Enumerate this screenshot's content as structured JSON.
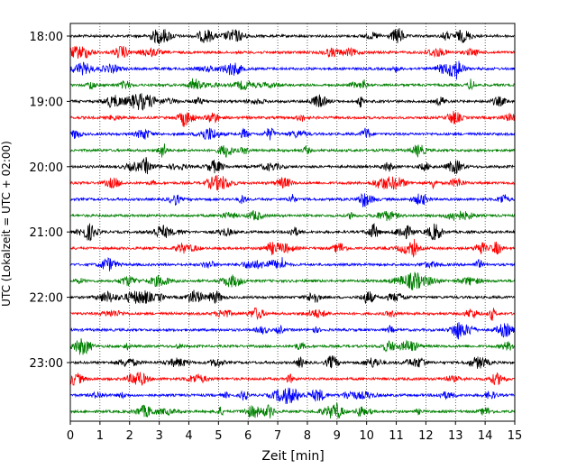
{
  "chart_data": {
    "type": "line",
    "title": "",
    "xlabel": "Zeit  [min]",
    "ylabel": "UTC (Lokalzeit = UTC + 02:00)",
    "xlim": [
      0,
      15
    ],
    "x_ticks": [
      0,
      1,
      2,
      3,
      4,
      5,
      6,
      7,
      8,
      9,
      10,
      11,
      12,
      13,
      14,
      15
    ],
    "y_ticks": [
      {
        "label": "18:00",
        "trace": 0
      },
      {
        "label": "19:00",
        "trace": 4
      },
      {
        "label": "20:00",
        "trace": 8
      },
      {
        "label": "21:00",
        "trace": 12
      },
      {
        "label": "22:00",
        "trace": 16
      },
      {
        "label": "23:00",
        "trace": 20
      }
    ],
    "grid": "vertical dotted",
    "colors": [
      "#000000",
      "#ff0000",
      "#0000ff",
      "#008000"
    ],
    "series": [
      {
        "start": "18:00",
        "color": "#000000"
      },
      {
        "start": "18:15",
        "color": "#ff0000"
      },
      {
        "start": "18:30",
        "color": "#0000ff"
      },
      {
        "start": "18:45",
        "color": "#008000"
      },
      {
        "start": "19:00",
        "color": "#000000"
      },
      {
        "start": "19:15",
        "color": "#ff0000"
      },
      {
        "start": "19:30",
        "color": "#0000ff"
      },
      {
        "start": "19:45",
        "color": "#008000"
      },
      {
        "start": "20:00",
        "color": "#000000"
      },
      {
        "start": "20:15",
        "color": "#ff0000"
      },
      {
        "start": "20:30",
        "color": "#0000ff"
      },
      {
        "start": "20:45",
        "color": "#008000"
      },
      {
        "start": "21:00",
        "color": "#000000"
      },
      {
        "start": "21:15",
        "color": "#ff0000"
      },
      {
        "start": "21:30",
        "color": "#0000ff"
      },
      {
        "start": "21:45",
        "color": "#008000"
      },
      {
        "start": "22:00",
        "color": "#000000"
      },
      {
        "start": "22:15",
        "color": "#ff0000"
      },
      {
        "start": "22:30",
        "color": "#0000ff"
      },
      {
        "start": "22:45",
        "color": "#008000"
      },
      {
        "start": "23:00",
        "color": "#000000"
      },
      {
        "start": "23:15",
        "color": "#ff0000"
      },
      {
        "start": "23:30",
        "color": "#0000ff"
      },
      {
        "start": "23:45",
        "color": "#008000"
      }
    ]
  }
}
